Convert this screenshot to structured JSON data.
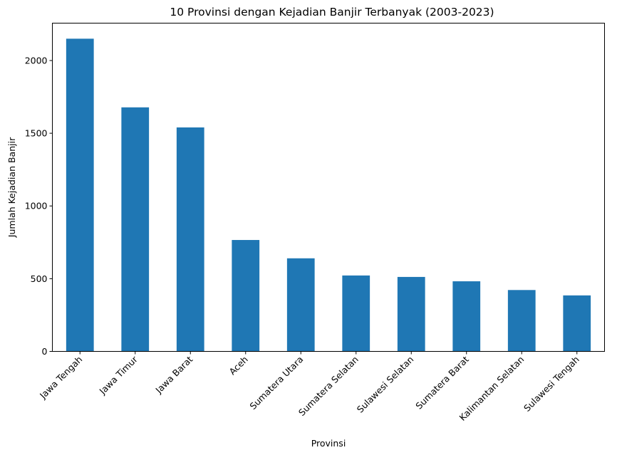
{
  "chart_data": {
    "type": "bar",
    "title": "10 Provinsi dengan Kejadian Banjir Terbanyak (2003-2023)",
    "xlabel": "Provinsi",
    "ylabel": "Jumlah Kejadian Banjir",
    "categories": [
      "Jawa Tengah",
      "Jawa Timur",
      "Jawa Barat",
      "Aceh",
      "Sumatera Utara",
      "Sumatera Selatan",
      "Sulawesi Selatan",
      "Sumatera Barat",
      "Kalimantan Selatan",
      "Sulawesi Tengah"
    ],
    "values": [
      2150,
      1678,
      1540,
      766,
      640,
      522,
      512,
      482,
      422,
      385
    ],
    "ylim": [
      0,
      2257
    ],
    "yticks": [
      0,
      500,
      1000,
      1500,
      2000
    ],
    "bar_color": "#1f77b4",
    "grid": false,
    "legend": false
  }
}
